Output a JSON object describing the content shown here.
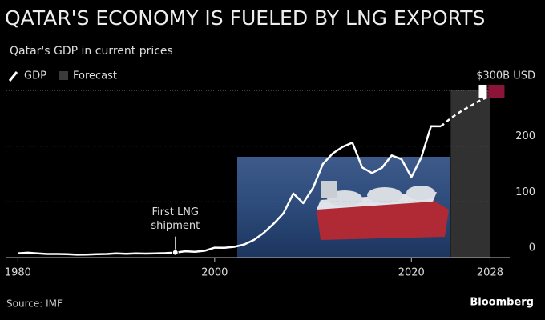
{
  "chart_data": {
    "type": "line",
    "title": "QATAR'S ECONOMY IS FUELED BY LNG EXPORTS",
    "subtitle": "Qatar's GDP in current prices",
    "source": "Source: IMF",
    "brand": "Bloomberg",
    "x": [
      1980,
      1981,
      1982,
      1983,
      1984,
      1985,
      1986,
      1987,
      1988,
      1989,
      1990,
      1991,
      1992,
      1993,
      1994,
      1995,
      1996,
      1997,
      1998,
      1999,
      2000,
      2001,
      2002,
      2003,
      2004,
      2005,
      2006,
      2007,
      2008,
      2009,
      2010,
      2011,
      2012,
      2013,
      2014,
      2015,
      2016,
      2017,
      2018,
      2019,
      2020,
      2021,
      2022,
      2023,
      2024,
      2025,
      2026,
      2027,
      2028
    ],
    "series": [
      {
        "name": "GDP",
        "color": "#ffffff",
        "values": [
          7.8,
          8.7,
          7.6,
          6.5,
          6.5,
          6.2,
          5.1,
          5.4,
          6.0,
          6.5,
          7.4,
          6.9,
          7.6,
          7.2,
          7.4,
          8.1,
          9.1,
          11.3,
          10.3,
          12.4,
          17.8,
          17.5,
          19.4,
          23.5,
          31.7,
          44.5,
          60.9,
          79.7,
          115,
          97.8,
          125,
          167.8,
          186.8,
          198.7,
          206.2,
          161.7,
          151.7,
          161.1,
          183.3,
          176.4,
          144.4,
          179.6,
          235.8,
          235.5,
          null,
          null,
          null,
          null,
          null
        ],
        "forecast_values": [
          null,
          null,
          null,
          null,
          null,
          null,
          null,
          null,
          null,
          null,
          null,
          null,
          null,
          null,
          null,
          null,
          null,
          null,
          null,
          null,
          null,
          null,
          null,
          null,
          null,
          null,
          null,
          null,
          null,
          null,
          null,
          null,
          null,
          null,
          null,
          null,
          null,
          null,
          null,
          null,
          null,
          null,
          null,
          235.5,
          250,
          262,
          272,
          282,
          290
        ]
      }
    ],
    "forecast": {
      "name": "Forecast",
      "color": "#3a3a3a",
      "range": [
        2024,
        2028
      ]
    },
    "annotation": {
      "lines": [
        "First LNG",
        "shipment"
      ],
      "point": 16
    },
    "xlim": [
      1978.5,
      2030
    ],
    "xticks": [
      1980,
      2000,
      2020,
      2028
    ],
    "ylim": [
      0,
      300
    ],
    "yticks": [
      0,
      100,
      200,
      {
        "value": 300,
        "label": "$300B USD"
      }
    ],
    "grid": true
  }
}
